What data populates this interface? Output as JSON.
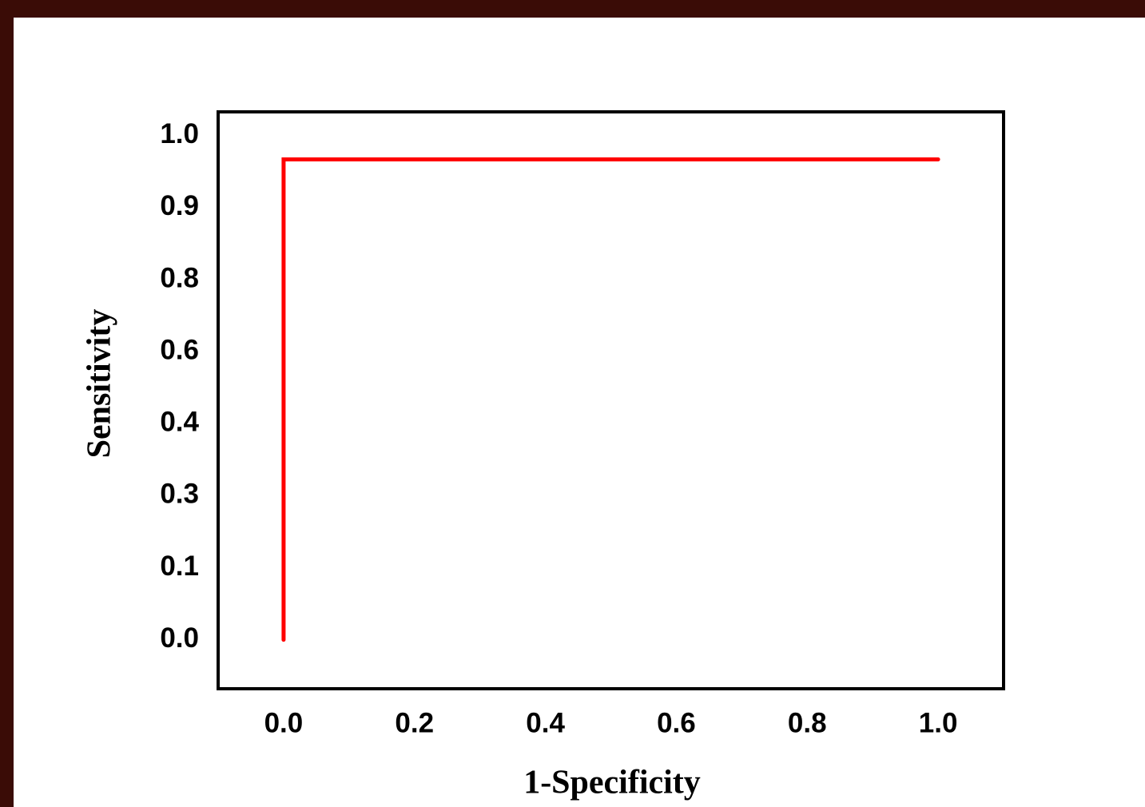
{
  "chart_data": {
    "type": "line",
    "xlabel": "1-Specificity",
    "ylabel": "Sensitivity",
    "x": [
      0.0,
      0.0,
      1.0
    ],
    "values": [
      0.0,
      0.967,
      0.967
    ],
    "color": "#ff0000",
    "xlim": [
      -0.1,
      1.1
    ],
    "xticks": [
      {
        "value": 0,
        "label": "0.0"
      },
      0.2,
      0.4,
      0.6,
      0.8,
      {
        "value": 1,
        "label": "1.0"
      }
    ],
    "ylim": [
      -0.068,
      1.033
    ],
    "yscale": "tick-spaced",
    "yticks": [
      {
        "value": 0,
        "label": "0.0"
      },
      0.1,
      0.3,
      0.4,
      0.6,
      0.8,
      0.9,
      {
        "value": 1,
        "label": "1.0"
      }
    ]
  }
}
